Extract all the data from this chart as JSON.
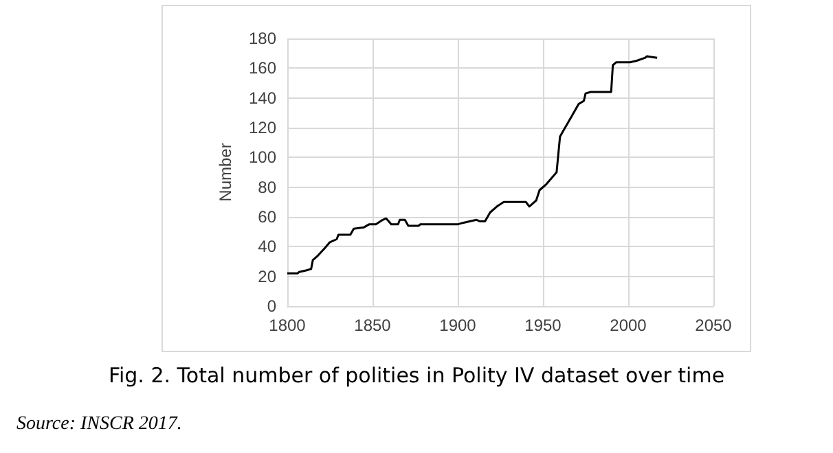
{
  "chart_data": {
    "type": "line",
    "title": "Fig. 2. Total number of polities in Polity IV dataset over time",
    "ylabel": "Number",
    "annotations": [
      "Source: INSCR 2017."
    ],
    "x": [
      1800,
      1806,
      1807,
      1811,
      1814,
      1815,
      1818,
      1822,
      1825,
      1829,
      1830,
      1833,
      1837,
      1839,
      1845,
      1848,
      1852,
      1856,
      1858,
      1861,
      1865,
      1866,
      1869,
      1871,
      1877,
      1878,
      1900,
      1903,
      1911,
      1913,
      1916,
      1919,
      1923,
      1927,
      1936,
      1940,
      1942,
      1946,
      1948,
      1952,
      1958,
      1960,
      1962,
      1967,
      1971,
      1974,
      1975,
      1978,
      1990,
      1991,
      1993,
      2001,
      2005,
      2010,
      2011,
      2017
    ],
    "series": [
      {
        "color": "#000000",
        "values": [
          22,
          22,
          23,
          24,
          25,
          31,
          34,
          39,
          43,
          45,
          48,
          48,
          48,
          52,
          53,
          55,
          55,
          58,
          59,
          55,
          55,
          58,
          58,
          54,
          54,
          55,
          55,
          56,
          58,
          57,
          57,
          63,
          67,
          70,
          70,
          70,
          67,
          71,
          78,
          82,
          90,
          114,
          118,
          128,
          136,
          138,
          143,
          144,
          144,
          162,
          164,
          164,
          165,
          167,
          168,
          167
        ]
      }
    ],
    "xlim": [
      1800,
      2050
    ],
    "xticks": [
      1800,
      1850,
      1900,
      1950,
      2000,
      2050
    ],
    "ylim": [
      0,
      180
    ],
    "yticks": [
      0,
      20,
      40,
      60,
      80,
      100,
      120,
      140,
      160,
      180
    ],
    "grid": true,
    "marker": "none",
    "line_style": "solid"
  }
}
